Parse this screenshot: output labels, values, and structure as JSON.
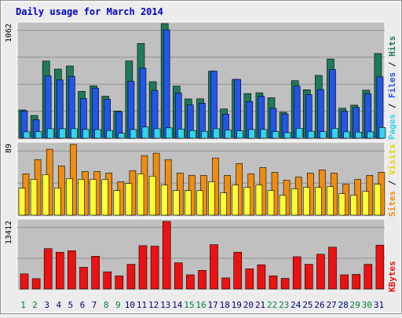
{
  "chart_data": [
    {
      "type": "bar",
      "title": "Daily usage for March 2014",
      "panel": "top",
      "y_max_label": "1062",
      "ylim": [
        0,
        1062
      ],
      "categories": [
        "1",
        "2",
        "3",
        "4",
        "5",
        "6",
        "7",
        "8",
        "9",
        "10",
        "11",
        "12",
        "13",
        "14",
        "15",
        "16",
        "17",
        "18",
        "19",
        "20",
        "21",
        "22",
        "23",
        "24",
        "25",
        "26",
        "27",
        "28",
        "29",
        "30",
        "31"
      ],
      "right_labels": [
        "Pages",
        "Files",
        "Hits"
      ],
      "series": [
        {
          "name": "Hits",
          "color": "#1e7a5a",
          "values": [
            262,
            211,
            715,
            640,
            669,
            434,
            486,
            389,
            252,
            716,
            878,
            524,
            1062,
            482,
            364,
            365,
            621,
            271,
            545,
            414,
            421,
            375,
            241,
            533,
            449,
            582,
            734,
            278,
            306,
            445,
            785
          ]
        },
        {
          "name": "Files",
          "color": "#2255e8",
          "values": [
            251,
            171,
            577,
            540,
            573,
            367,
            464,
            361,
            245,
            527,
            648,
            443,
            1004,
            419,
            308,
            325,
            621,
            223,
            545,
            339,
            388,
            277,
            225,
            483,
            404,
            451,
            637,
            250,
            285,
            413,
            568
          ]
        },
        {
          "name": "Pages",
          "color": "#33d4ee",
          "values": [
            59,
            62,
            88,
            88,
            88,
            81,
            79,
            71,
            46,
            81,
            103,
            88,
            96,
            85,
            71,
            64,
            88,
            76,
            68,
            81,
            81,
            61,
            52,
            92,
            65,
            61,
            91,
            59,
            56,
            59,
            100
          ]
        }
      ]
    },
    {
      "type": "bar",
      "panel": "middle",
      "y_max_label": "89",
      "ylim": [
        0,
        89
      ],
      "categories": [
        "1",
        "2",
        "3",
        "4",
        "5",
        "6",
        "7",
        "8",
        "9",
        "10",
        "11",
        "12",
        "13",
        "14",
        "15",
        "16",
        "17",
        "18",
        "19",
        "20",
        "21",
        "22",
        "23",
        "24",
        "25",
        "26",
        "27",
        "28",
        "29",
        "30",
        "31"
      ],
      "right_labels": [
        "Sites",
        "Visits"
      ],
      "series": [
        {
          "name": "Visits",
          "color": "#f08c10",
          "values": [
            52,
            70,
            83,
            62,
            89,
            55,
            55,
            53,
            42,
            56,
            75,
            78,
            70,
            53,
            50,
            50,
            72,
            50,
            65,
            52,
            60,
            54,
            44,
            48,
            53,
            57,
            53,
            39,
            45,
            50,
            54
          ]
        },
        {
          "name": "Sites",
          "color": "#ffff33",
          "values": [
            34,
            45,
            51,
            34,
            46,
            45,
            45,
            45,
            31,
            40,
            52,
            49,
            38,
            31,
            31,
            31,
            42,
            28,
            38,
            35,
            38,
            31,
            25,
            33,
            35,
            35,
            36,
            27,
            25,
            30,
            39
          ]
        }
      ]
    },
    {
      "type": "bar",
      "panel": "bottom",
      "y_max_label": "13412",
      "ylim": [
        0,
        13412
      ],
      "categories": [
        "1",
        "2",
        "3",
        "4",
        "5",
        "6",
        "7",
        "8",
        "9",
        "10",
        "11",
        "12",
        "13",
        "14",
        "15",
        "16",
        "17",
        "18",
        "19",
        "20",
        "21",
        "22",
        "23",
        "24",
        "25",
        "26",
        "27",
        "28",
        "29",
        "30",
        "31"
      ],
      "right_labels": [
        "KBytes"
      ],
      "series": [
        {
          "name": "KBytes",
          "color": "#ee1111",
          "values": [
            3000,
            2050,
            8000,
            7300,
            7600,
            4300,
            6500,
            3400,
            2600,
            4900,
            8600,
            8500,
            13412,
            5200,
            2800,
            3700,
            8800,
            2200,
            7300,
            4000,
            4800,
            2600,
            2100,
            6400,
            4900,
            6900,
            8300,
            2800,
            2900,
            4900,
            8700
          ]
        }
      ]
    }
  ],
  "colors": {
    "border": "#a8a8a8",
    "plot_bg": "#c0c0c0",
    "grid": "#909090",
    "title": "#0000cc",
    "weekend_label": "#008040",
    "weekday_label": "#000080"
  },
  "weekend_days": [
    1,
    2,
    8,
    9,
    15,
    16,
    22,
    23,
    29,
    30
  ]
}
